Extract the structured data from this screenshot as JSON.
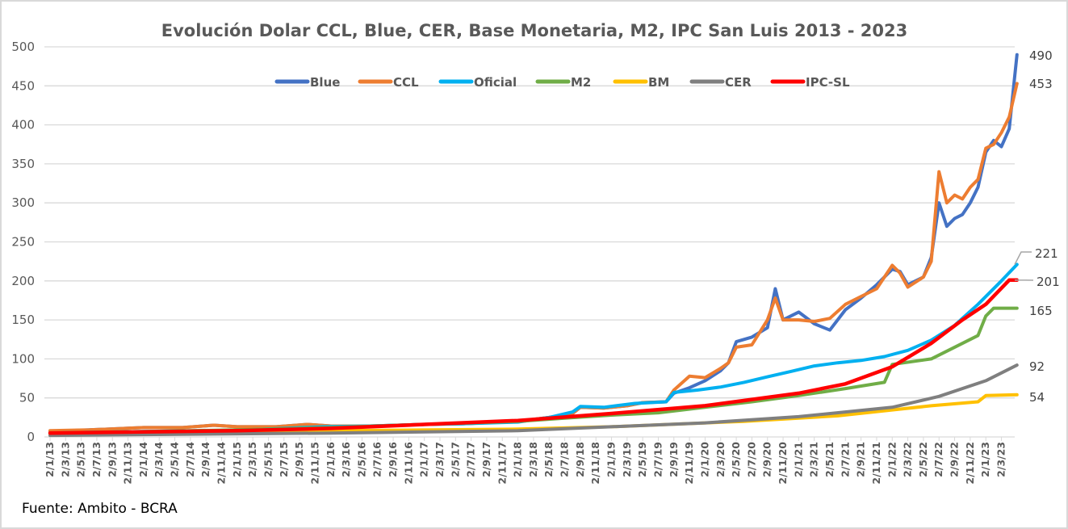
{
  "chart_data": {
    "type": "line",
    "title": "Evolución Dolar CCL, Blue, CER, Base Monetaria, M2, IPC San Luis 2013 - 2023",
    "ylim": [
      0,
      500
    ],
    "yticks": [
      0,
      50,
      100,
      150,
      200,
      250,
      300,
      350,
      400,
      450,
      500
    ],
    "grid": true,
    "legend_placement": "top-center",
    "xticks": [
      "2/1/13",
      "2/3/13",
      "2/5/13",
      "2/7/13",
      "2/9/13",
      "2/11/13",
      "2/1/14",
      "2/3/14",
      "2/5/14",
      "2/7/14",
      "2/9/14",
      "2/11/14",
      "2/1/15",
      "2/3/15",
      "2/5/15",
      "2/7/15",
      "2/9/15",
      "2/11/15",
      "2/1/16",
      "2/3/16",
      "2/5/16",
      "2/7/16",
      "2/9/16",
      "2/11/16",
      "2/1/17",
      "2/3/17",
      "2/5/17",
      "2/7/17",
      "2/9/17",
      "2/11/17",
      "2/1/18",
      "2/3/18",
      "2/5/18",
      "2/7/18",
      "2/9/18",
      "2/11/18",
      "2/1/19",
      "2/3/19",
      "2/5/19",
      "2/7/19",
      "2/9/19",
      "2/11/19",
      "2/1/20",
      "2/3/20",
      "2/5/20",
      "2/7/20",
      "2/9/20",
      "2/11/20",
      "2/1/21",
      "2/3/21",
      "2/5/21",
      "2/7/21",
      "2/9/21",
      "2/11/21",
      "2/1/22",
      "2/3/22",
      "2/5/22",
      "2/7/22",
      "2/9/22",
      "2/11/22",
      "2/1/23",
      "2/3/23"
    ],
    "series": [
      {
        "name": "Blue",
        "color": "#4472c4",
        "end_label": "490",
        "points": [
          [
            "2013-01",
            7
          ],
          [
            "2013-06",
            9
          ],
          [
            "2014-01",
            12
          ],
          [
            "2014-06",
            12
          ],
          [
            "2014-10",
            15
          ],
          [
            "2015-01",
            13
          ],
          [
            "2015-06",
            13
          ],
          [
            "2015-10",
            16
          ],
          [
            "2016-01",
            14
          ],
          [
            "2016-06",
            14
          ],
          [
            "2017-01",
            16
          ],
          [
            "2017-06",
            17
          ],
          [
            "2018-01",
            20
          ],
          [
            "2018-05",
            25
          ],
          [
            "2018-07",
            28
          ],
          [
            "2018-08",
            30
          ],
          [
            "2018-09",
            38
          ],
          [
            "2018-12",
            37
          ],
          [
            "2019-03",
            40
          ],
          [
            "2019-05",
            44
          ],
          [
            "2019-08",
            45
          ],
          [
            "2019-09",
            56
          ],
          [
            "2019-11",
            63
          ],
          [
            "2020-01",
            72
          ],
          [
            "2020-03",
            85
          ],
          [
            "2020-04",
            95
          ],
          [
            "2020-05",
            122
          ],
          [
            "2020-07",
            128
          ],
          [
            "2020-09",
            140
          ],
          [
            "2020-10",
            190
          ],
          [
            "2020-11",
            150
          ],
          [
            "2021-01",
            160
          ],
          [
            "2021-03",
            145
          ],
          [
            "2021-05",
            137
          ],
          [
            "2021-07",
            163
          ],
          [
            "2021-09",
            178
          ],
          [
            "2021-11",
            195
          ],
          [
            "2022-01",
            215
          ],
          [
            "2022-02",
            212
          ],
          [
            "2022-03",
            195
          ],
          [
            "2022-05",
            205
          ],
          [
            "2022-06",
            230
          ],
          [
            "2022-07",
            300
          ],
          [
            "2022-08",
            270
          ],
          [
            "2022-09",
            280
          ],
          [
            "2022-10",
            285
          ],
          [
            "2022-11",
            300
          ],
          [
            "2022-12",
            320
          ],
          [
            "2023-01",
            365
          ],
          [
            "2023-02",
            380
          ],
          [
            "2023-03",
            372
          ],
          [
            "2023-04",
            395
          ],
          [
            "2023-05",
            490
          ]
        ]
      },
      {
        "name": "CCL",
        "color": "#ed7d31",
        "end_label": "453",
        "points": [
          [
            "2013-01",
            8
          ],
          [
            "2013-06",
            9
          ],
          [
            "2014-01",
            12
          ],
          [
            "2014-06",
            12
          ],
          [
            "2014-10",
            15
          ],
          [
            "2015-01",
            13
          ],
          [
            "2015-06",
            13
          ],
          [
            "2015-10",
            16
          ],
          [
            "2016-01",
            14
          ],
          [
            "2016-06",
            14
          ],
          [
            "2017-01",
            16
          ],
          [
            "2017-06",
            17
          ],
          [
            "2018-01",
            20
          ],
          [
            "2018-05",
            25
          ],
          [
            "2018-07",
            28
          ],
          [
            "2018-08",
            30
          ],
          [
            "2018-09",
            38
          ],
          [
            "2018-12",
            37
          ],
          [
            "2019-03",
            40
          ],
          [
            "2019-05",
            44
          ],
          [
            "2019-08",
            45
          ],
          [
            "2019-09",
            60
          ],
          [
            "2019-11",
            78
          ],
          [
            "2020-01",
            76
          ],
          [
            "2020-03",
            88
          ],
          [
            "2020-04",
            95
          ],
          [
            "2020-05",
            115
          ],
          [
            "2020-07",
            118
          ],
          [
            "2020-09",
            150
          ],
          [
            "2020-10",
            178
          ],
          [
            "2020-11",
            150
          ],
          [
            "2021-01",
            150
          ],
          [
            "2021-03",
            148
          ],
          [
            "2021-05",
            152
          ],
          [
            "2021-07",
            170
          ],
          [
            "2021-09",
            180
          ],
          [
            "2021-11",
            190
          ],
          [
            "2022-01",
            220
          ],
          [
            "2022-02",
            210
          ],
          [
            "2022-03",
            192
          ],
          [
            "2022-05",
            205
          ],
          [
            "2022-06",
            225
          ],
          [
            "2022-07",
            340
          ],
          [
            "2022-08",
            300
          ],
          [
            "2022-09",
            310
          ],
          [
            "2022-10",
            305
          ],
          [
            "2022-11",
            320
          ],
          [
            "2022-12",
            330
          ],
          [
            "2023-01",
            370
          ],
          [
            "2023-02",
            375
          ],
          [
            "2023-03",
            390
          ],
          [
            "2023-04",
            410
          ],
          [
            "2023-05",
            453
          ]
        ]
      },
      {
        "name": "Oficial",
        "color": "#00b0f0",
        "end_label": "221",
        "points": [
          [
            "2013-01",
            5
          ],
          [
            "2014-01",
            7
          ],
          [
            "2015-01",
            8.5
          ],
          [
            "2015-12",
            13
          ],
          [
            "2016-06",
            14
          ],
          [
            "2017-01",
            16
          ],
          [
            "2017-06",
            17
          ],
          [
            "2018-01",
            19
          ],
          [
            "2018-05",
            25
          ],
          [
            "2018-08",
            32
          ],
          [
            "2018-09",
            39
          ],
          [
            "2018-12",
            38
          ],
          [
            "2019-04",
            43
          ],
          [
            "2019-08",
            45
          ],
          [
            "2019-09",
            57
          ],
          [
            "2019-12",
            60
          ],
          [
            "2020-03",
            64
          ],
          [
            "2020-06",
            70
          ],
          [
            "2020-09",
            77
          ],
          [
            "2020-12",
            84
          ],
          [
            "2021-03",
            91
          ],
          [
            "2021-06",
            95
          ],
          [
            "2021-09",
            98
          ],
          [
            "2021-12",
            103
          ],
          [
            "2022-03",
            111
          ],
          [
            "2022-06",
            124
          ],
          [
            "2022-09",
            143
          ],
          [
            "2022-12",
            170
          ],
          [
            "2023-03",
            200
          ],
          [
            "2023-05",
            221
          ]
        ]
      },
      {
        "name": "M2",
        "color": "#70ad47",
        "end_label": "165",
        "points": [
          [
            "2013-01",
            5
          ],
          [
            "2014-01",
            7
          ],
          [
            "2015-01",
            9
          ],
          [
            "2016-01",
            12
          ],
          [
            "2017-01",
            16
          ],
          [
            "2018-01",
            20
          ],
          [
            "2018-07",
            24
          ],
          [
            "2019-01",
            28
          ],
          [
            "2019-07",
            31
          ],
          [
            "2020-01",
            38
          ],
          [
            "2020-07",
            45
          ],
          [
            "2021-01",
            53
          ],
          [
            "2021-07",
            62
          ],
          [
            "2021-12",
            70
          ],
          [
            "2022-01",
            93
          ],
          [
            "2022-06",
            100
          ],
          [
            "2022-09",
            115
          ],
          [
            "2022-12",
            130
          ],
          [
            "2023-01",
            155
          ],
          [
            "2023-02",
            165
          ],
          [
            "2023-05",
            165
          ]
        ]
      },
      {
        "name": "BM",
        "color": "#ffc000",
        "end_label": "54",
        "points": [
          [
            "2013-01",
            3
          ],
          [
            "2016-01",
            8
          ],
          [
            "2018-01",
            10
          ],
          [
            "2019-01",
            13
          ],
          [
            "2020-06",
            20
          ],
          [
            "2021-06",
            27
          ],
          [
            "2022-06",
            40
          ],
          [
            "2022-12",
            45
          ],
          [
            "2023-01",
            53
          ],
          [
            "2023-05",
            54
          ]
        ]
      },
      {
        "name": "CER",
        "color": "#7f7f7f",
        "end_label": "92",
        "points": [
          [
            "2013-01",
            2
          ],
          [
            "2016-01",
            5
          ],
          [
            "2018-01",
            8
          ],
          [
            "2019-01",
            13
          ],
          [
            "2020-01",
            18
          ],
          [
            "2021-01",
            26
          ],
          [
            "2022-01",
            38
          ],
          [
            "2022-07",
            52
          ],
          [
            "2023-01",
            72
          ],
          [
            "2023-05",
            92
          ]
        ]
      },
      {
        "name": "IPC-SL",
        "color": "#ff0000",
        "end_label": "201",
        "points": [
          [
            "2013-01",
            5
          ],
          [
            "2015-01",
            8
          ],
          [
            "2016-01",
            11
          ],
          [
            "2017-01",
            16
          ],
          [
            "2018-01",
            21
          ],
          [
            "2019-01",
            30
          ],
          [
            "2020-01",
            40
          ],
          [
            "2021-01",
            56
          ],
          [
            "2021-07",
            68
          ],
          [
            "2022-01",
            90
          ],
          [
            "2022-06",
            120
          ],
          [
            "2022-10",
            150
          ],
          [
            "2023-01",
            170
          ],
          [
            "2023-04",
            201
          ],
          [
            "2023-05",
            201
          ]
        ]
      }
    ]
  },
  "footer": {
    "source": "Fuente: Ambito - BCRA"
  }
}
